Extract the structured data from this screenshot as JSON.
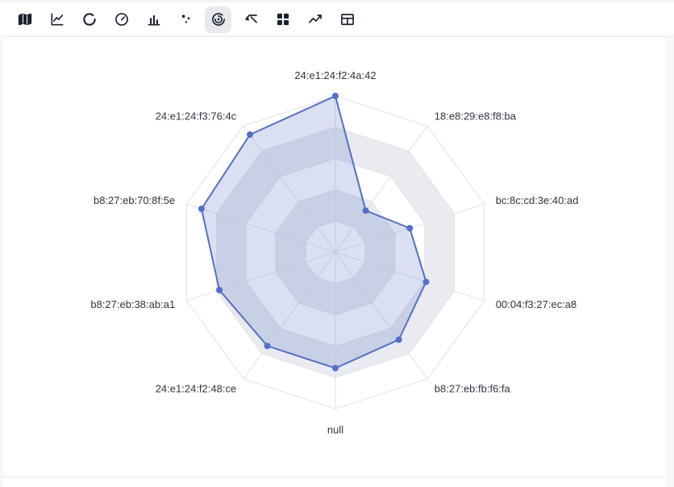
{
  "toolbar": {
    "icon_color": "#1b2330",
    "selected_background": "#e7e9ed",
    "items": [
      {
        "id": "map",
        "name": "map-chart-icon",
        "selected": false
      },
      {
        "id": "line",
        "name": "line-chart-icon",
        "selected": false
      },
      {
        "id": "donut",
        "name": "donut-chart-icon",
        "selected": false
      },
      {
        "id": "gauge",
        "name": "gauge-chart-icon",
        "selected": false
      },
      {
        "id": "bar",
        "name": "bar-chart-icon",
        "selected": false
      },
      {
        "id": "scatter",
        "name": "scatter-chart-icon",
        "selected": false
      },
      {
        "id": "radar",
        "name": "radar-chart-icon",
        "selected": true
      },
      {
        "id": "sankey",
        "name": "sankey-chart-icon",
        "selected": false
      },
      {
        "id": "treemap",
        "name": "treemap-chart-icon",
        "selected": false
      },
      {
        "id": "trend",
        "name": "trend-chart-icon",
        "selected": false
      },
      {
        "id": "table",
        "name": "table-view-icon",
        "selected": false
      }
    ]
  },
  "chart_data": {
    "type": "radar",
    "axes": [
      "24:e1:24:f2:4a:42",
      "18:e8:29:e8:f8:ba",
      "bc:8c:cd:3e:40:ad",
      "00:04:f3:27:ec:a8",
      "b8:27:eb:fb:f6:fa",
      "null",
      "24:e1:24:f2:48:ce",
      "b8:27:eb:38:ab:a1",
      "b8:27:eb:70:8f:5e",
      "24:e1:24:f3:76:4c"
    ],
    "series": [
      {
        "name": "series-1",
        "values": [
          100,
          33,
          50,
          61,
          69,
          74,
          74,
          78,
          90,
          93
        ]
      }
    ],
    "max": 100,
    "rings": 5,
    "grid": true,
    "legend_position": "none",
    "line_color": "#5470c6",
    "fill_color": "rgba(84,112,198,0.22)",
    "point_color": "#5470c6",
    "grid_line_color": "#e2e3ea",
    "split_area_colors": [
      "rgba(255,255,255,0.5)",
      "rgba(183,190,205,0.3)"
    ],
    "label_color": "#30343f",
    "label_font_size": 13
  }
}
